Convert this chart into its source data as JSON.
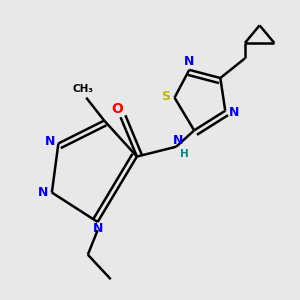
{
  "bg_color": "#e8e8e8",
  "atom_colors": {
    "N": "#0000ee",
    "O": "#ff0000",
    "S": "#bbbb00",
    "C": "#000000",
    "H": "#008888"
  },
  "bond_lw": 1.8,
  "font_size": 9
}
